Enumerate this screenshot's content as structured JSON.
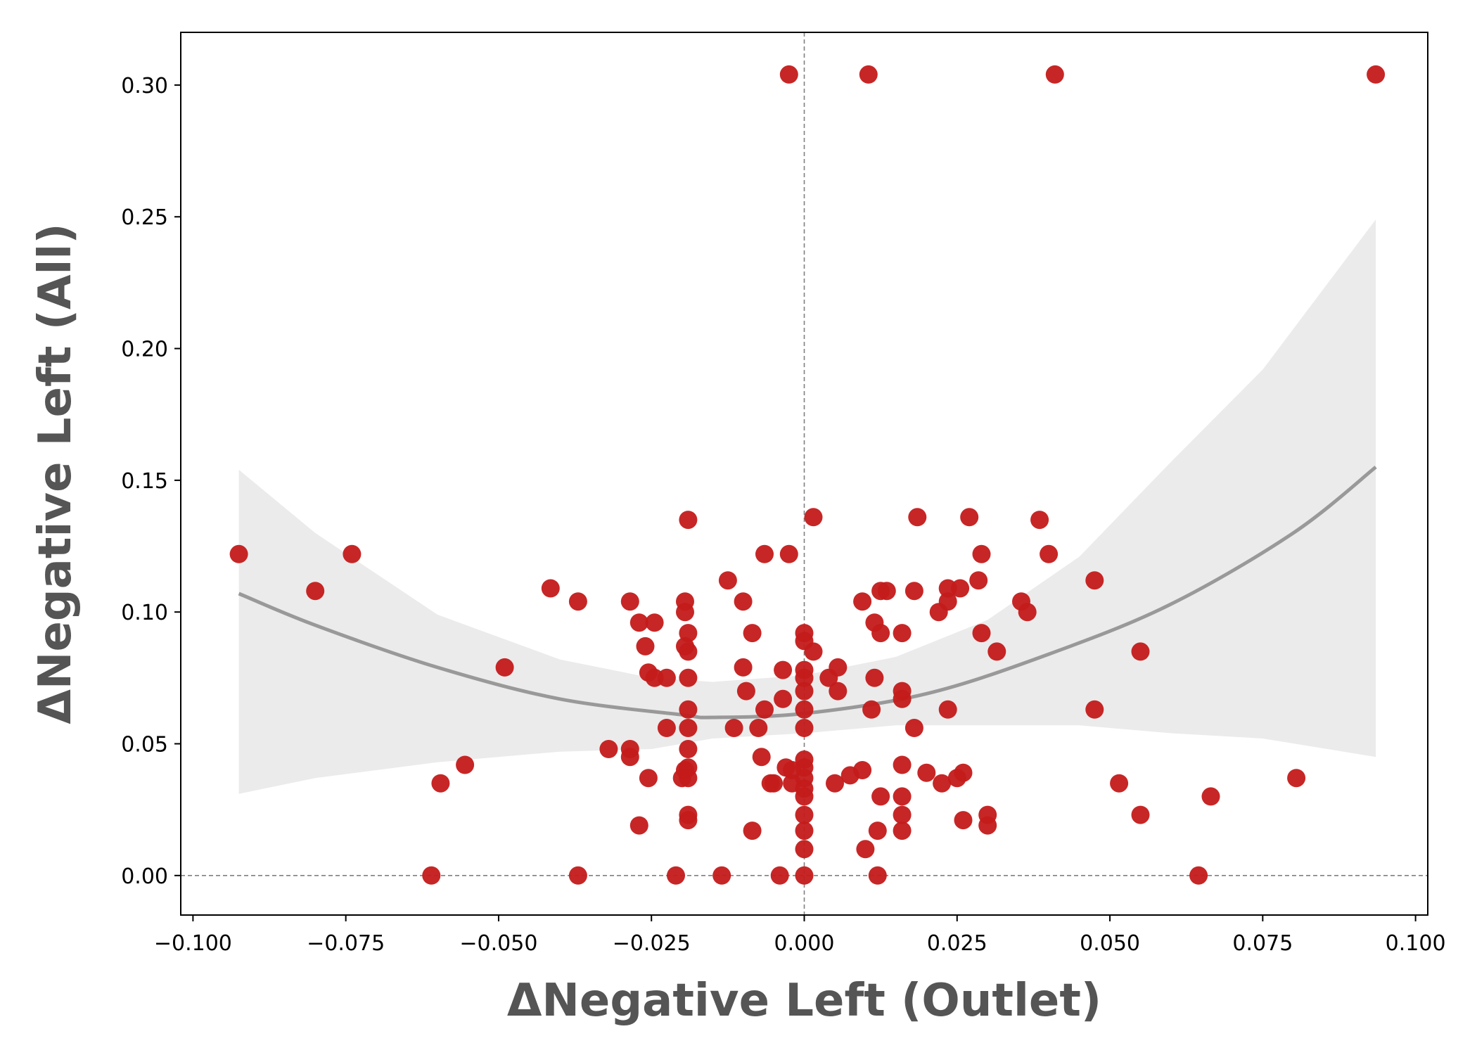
{
  "chart_data": {
    "type": "scatter",
    "title": "",
    "xlabel": "ΔNegative Left  (Outlet)",
    "ylabel": "ΔNegative Left  (All)",
    "xlim": [
      -0.102,
      0.102
    ],
    "ylim": [
      -0.015,
      0.32
    ],
    "x_ticks": [
      -0.1,
      -0.075,
      -0.05,
      -0.025,
      0.0,
      0.025,
      0.05,
      0.075,
      0.1
    ],
    "x_tick_labels": [
      "−0.100",
      "−0.075",
      "−0.050",
      "−0.025",
      "0.000",
      "0.025",
      "0.050",
      "0.075",
      "0.100"
    ],
    "y_ticks": [
      0.0,
      0.05,
      0.1,
      0.15,
      0.2,
      0.25,
      0.3
    ],
    "y_tick_labels": [
      "0.00",
      "0.05",
      "0.10",
      "0.15",
      "0.20",
      "0.25",
      "0.30"
    ],
    "grid": false,
    "reference_lines": {
      "x": 0,
      "y": 0
    },
    "colors": {
      "points": "#c41a1a",
      "fit_line": "#999999",
      "ci_band": "#ebebeb",
      "ref_line": "#808080"
    },
    "points": [
      [
        -0.0925,
        0.122
      ],
      [
        -0.08,
        0.108
      ],
      [
        -0.074,
        0.122
      ],
      [
        -0.061,
        0.0
      ],
      [
        -0.0595,
        0.035
      ],
      [
        -0.0555,
        0.042
      ],
      [
        -0.049,
        0.079
      ],
      [
        -0.0415,
        0.109
      ],
      [
        -0.037,
        0.104
      ],
      [
        -0.037,
        0.0
      ],
      [
        -0.032,
        0.048
      ],
      [
        -0.0285,
        0.104
      ],
      [
        -0.0285,
        0.048
      ],
      [
        -0.0285,
        0.045
      ],
      [
        -0.027,
        0.096
      ],
      [
        -0.027,
        0.019
      ],
      [
        -0.026,
        0.087
      ],
      [
        -0.0255,
        0.077
      ],
      [
        -0.0255,
        0.037
      ],
      [
        -0.0245,
        0.096
      ],
      [
        -0.0245,
        0.075
      ],
      [
        -0.0225,
        0.075
      ],
      [
        -0.0225,
        0.056
      ],
      [
        -0.021,
        0.0
      ],
      [
        -0.02,
        0.037
      ],
      [
        -0.0195,
        0.104
      ],
      [
        -0.0195,
        0.1
      ],
      [
        -0.0195,
        0.087
      ],
      [
        -0.019,
        0.135
      ],
      [
        -0.019,
        0.092
      ],
      [
        -0.019,
        0.085
      ],
      [
        -0.019,
        0.075
      ],
      [
        -0.019,
        0.063
      ],
      [
        -0.019,
        0.056
      ],
      [
        -0.019,
        0.048
      ],
      [
        -0.019,
        0.041
      ],
      [
        -0.019,
        0.037
      ],
      [
        -0.019,
        0.023
      ],
      [
        -0.019,
        0.021
      ],
      [
        -0.0195,
        0.04
      ],
      [
        -0.0135,
        0.0
      ],
      [
        -0.0125,
        0.112
      ],
      [
        -0.0115,
        0.056
      ],
      [
        -0.01,
        0.104
      ],
      [
        -0.01,
        0.079
      ],
      [
        -0.0095,
        0.07
      ],
      [
        -0.0085,
        0.092
      ],
      [
        -0.0085,
        0.017
      ],
      [
        -0.0075,
        0.056
      ],
      [
        -0.007,
        0.045
      ],
      [
        -0.0065,
        0.122
      ],
      [
        -0.0065,
        0.063
      ],
      [
        -0.0055,
        0.035
      ],
      [
        -0.005,
        0.035
      ],
      [
        -0.004,
        0.0
      ],
      [
        -0.0035,
        0.078
      ],
      [
        -0.0035,
        0.067
      ],
      [
        -0.003,
        0.041
      ],
      [
        -0.0025,
        0.122
      ],
      [
        -0.0025,
        0.304
      ],
      [
        -0.002,
        0.035
      ],
      [
        -0.002,
        0.04
      ],
      [
        0.0,
        0.092
      ],
      [
        0.0,
        0.089
      ],
      [
        0.0,
        0.078
      ],
      [
        0.0,
        0.075
      ],
      [
        0.0,
        0.07
      ],
      [
        0.0,
        0.063
      ],
      [
        0.0,
        0.056
      ],
      [
        0.0,
        0.044
      ],
      [
        0.0,
        0.041
      ],
      [
        0.0,
        0.037
      ],
      [
        0.0,
        0.033
      ],
      [
        0.0,
        0.03
      ],
      [
        0.0,
        0.023
      ],
      [
        0.0,
        0.017
      ],
      [
        0.0,
        0.01
      ],
      [
        0.0,
        0.0
      ],
      [
        0.0015,
        0.085
      ],
      [
        0.0015,
        0.136
      ],
      [
        0.004,
        0.075
      ],
      [
        0.005,
        0.035
      ],
      [
        0.0055,
        0.07
      ],
      [
        0.0055,
        0.079
      ],
      [
        0.0075,
        0.038
      ],
      [
        0.0095,
        0.04
      ],
      [
        0.0095,
        0.104
      ],
      [
        0.01,
        0.01
      ],
      [
        0.0105,
        0.304
      ],
      [
        0.011,
        0.063
      ],
      [
        0.0115,
        0.075
      ],
      [
        0.0115,
        0.096
      ],
      [
        0.012,
        0.017
      ],
      [
        0.012,
        0.0
      ],
      [
        0.0125,
        0.108
      ],
      [
        0.0125,
        0.092
      ],
      [
        0.0125,
        0.03
      ],
      [
        0.0135,
        0.108
      ],
      [
        0.016,
        0.092
      ],
      [
        0.016,
        0.07
      ],
      [
        0.016,
        0.067
      ],
      [
        0.016,
        0.042
      ],
      [
        0.016,
        0.03
      ],
      [
        0.016,
        0.023
      ],
      [
        0.016,
        0.017
      ],
      [
        0.018,
        0.108
      ],
      [
        0.018,
        0.056
      ],
      [
        0.0185,
        0.136
      ],
      [
        0.02,
        0.039
      ],
      [
        0.022,
        0.1
      ],
      [
        0.0225,
        0.035
      ],
      [
        0.0235,
        0.104
      ],
      [
        0.0235,
        0.109
      ],
      [
        0.0235,
        0.063
      ],
      [
        0.025,
        0.037
      ],
      [
        0.0255,
        0.109
      ],
      [
        0.026,
        0.039
      ],
      [
        0.026,
        0.021
      ],
      [
        0.027,
        0.136
      ],
      [
        0.0285,
        0.112
      ],
      [
        0.029,
        0.122
      ],
      [
        0.029,
        0.092
      ],
      [
        0.03,
        0.023
      ],
      [
        0.03,
        0.019
      ],
      [
        0.0315,
        0.085
      ],
      [
        0.0355,
        0.104
      ],
      [
        0.0365,
        0.1
      ],
      [
        0.0385,
        0.135
      ],
      [
        0.04,
        0.122
      ],
      [
        0.041,
        0.304
      ],
      [
        0.0475,
        0.112
      ],
      [
        0.0475,
        0.063
      ],
      [
        0.0515,
        0.035
      ],
      [
        0.055,
        0.085
      ],
      [
        0.055,
        0.023
      ],
      [
        0.0645,
        0.0
      ],
      [
        0.0665,
        0.03
      ],
      [
        0.0805,
        0.037
      ],
      [
        0.0935,
        0.304
      ]
    ],
    "fit_curve": {
      "x": [
        -0.0925,
        -0.08,
        -0.06,
        -0.04,
        -0.02,
        -0.015,
        0.0,
        0.02,
        0.04,
        0.06,
        0.08,
        0.0935
      ],
      "y": [
        0.107,
        0.095,
        0.079,
        0.067,
        0.061,
        0.06,
        0.0615,
        0.069,
        0.084,
        0.103,
        0.13,
        0.155
      ]
    },
    "ci_band": {
      "x": [
        -0.0925,
        -0.08,
        -0.06,
        -0.04,
        -0.025,
        -0.015,
        0.0,
        0.015,
        0.03,
        0.045,
        0.06,
        0.075,
        0.0935
      ],
      "upper": [
        0.154,
        0.13,
        0.099,
        0.082,
        0.075,
        0.0735,
        0.076,
        0.083,
        0.097,
        0.121,
        0.157,
        0.192,
        0.249
      ],
      "lower": [
        0.031,
        0.037,
        0.043,
        0.047,
        0.048,
        0.052,
        0.054,
        0.057,
        0.057,
        0.057,
        0.054,
        0.052,
        0.045
      ]
    }
  }
}
